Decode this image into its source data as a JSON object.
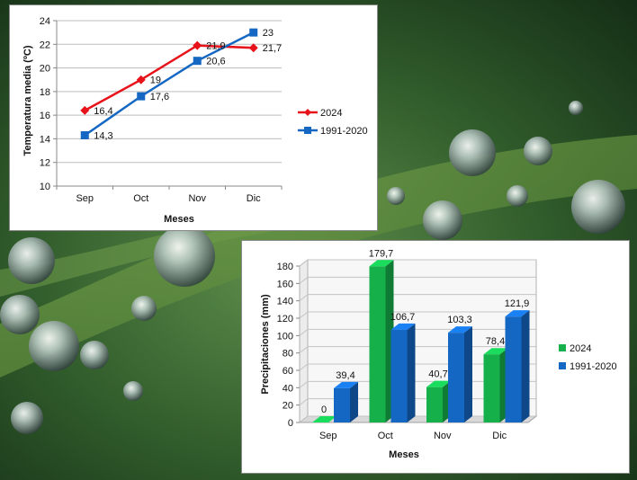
{
  "chart_data": [
    {
      "type": "line",
      "xlabel": "Meses",
      "ylabel": "Temperatura media (ºC)",
      "categories": [
        "Sep",
        "Oct",
        "Nov",
        "Dic"
      ],
      "ylim": [
        10,
        24
      ],
      "yticks": [
        "10",
        "12",
        "14",
        "16",
        "18",
        "20",
        "22",
        "24"
      ],
      "legend_position": "right",
      "series": [
        {
          "name": "2024",
          "color": "#e8131a",
          "marker": "diamond",
          "values": [
            16.4,
            19,
            21.9,
            21.7
          ],
          "labels": [
            "16,4",
            "19",
            "21,9",
            "21,7"
          ]
        },
        {
          "name": "1991-2020",
          "color": "#1467c3",
          "marker": "square",
          "values": [
            14.3,
            17.6,
            20.6,
            23
          ],
          "labels": [
            "14,3",
            "17,6",
            "20,6",
            "23"
          ]
        }
      ]
    },
    {
      "type": "bar",
      "style": "3d",
      "xlabel": "Meses",
      "ylabel": "Precipitaciones (mm)",
      "categories": [
        "Sep",
        "Oct",
        "Nov",
        "Dic"
      ],
      "ylim": [
        0,
        180
      ],
      "yticks": [
        "0",
        "20",
        "40",
        "60",
        "80",
        "100",
        "120",
        "140",
        "160",
        "180"
      ],
      "legend_position": "right",
      "series": [
        {
          "name": "2024",
          "color": "#15b04a",
          "values": [
            0,
            179.7,
            40.7,
            78.4
          ],
          "labels": [
            "0",
            "179,7",
            "40,7",
            "78,4"
          ]
        },
        {
          "name": "1991-2020",
          "color": "#1467c3",
          "values": [
            39.4,
            106.7,
            103.3,
            121.9
          ],
          "labels": [
            "39,4",
            "106,7",
            "103,3",
            "121,9"
          ]
        }
      ]
    }
  ]
}
